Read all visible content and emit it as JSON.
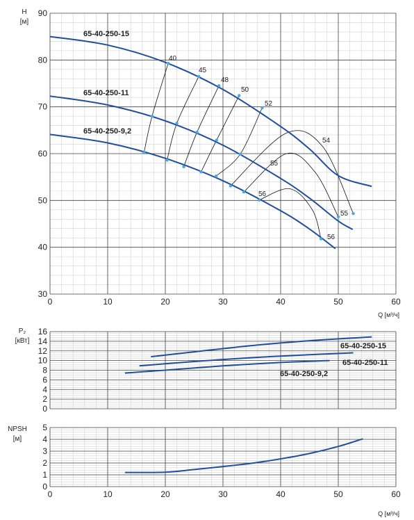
{
  "colors": {
    "curve": "#1f4e9c",
    "marker": "#4aa8e0",
    "iso": "#111111",
    "grid_major": "#444444",
    "grid_minor": "#d2d2d2",
    "text": "#222222"
  },
  "chart_data": [
    {
      "type": "line",
      "id": "head",
      "ylabel": "H\n[м]",
      "xlabel": "Q [м³/ч]",
      "xlim": [
        0,
        60
      ],
      "ylim": [
        30,
        90
      ],
      "xticks": [
        0,
        10,
        20,
        30,
        40,
        50,
        60
      ],
      "yticks": [
        30,
        40,
        50,
        60,
        70,
        80,
        90
      ],
      "grid": true,
      "series": [
        {
          "name": "65-40-250-15",
          "x": [
            0,
            10,
            20,
            30,
            40,
            45,
            50,
            55.8
          ],
          "y": [
            85,
            83.2,
            79.5,
            73.7,
            65.8,
            61,
            55.3,
            53
          ]
        },
        {
          "name": "65-40-250-11",
          "x": [
            0,
            10,
            20,
            30,
            40,
            45,
            50,
            52.5
          ],
          "y": [
            72.3,
            70.4,
            67,
            61.8,
            54.7,
            50.5,
            45.6,
            43.8
          ]
        },
        {
          "name": "65-40-250-9,2",
          "x": [
            0,
            10,
            20,
            30,
            40,
            45,
            49.5
          ],
          "y": [
            64.1,
            62.3,
            59,
            54.2,
            47.8,
            43.9,
            39.7
          ]
        }
      ],
      "efficiency_labels": [
        "40",
        "45",
        "48",
        "50",
        "52",
        "54",
        "55",
        "56",
        "55",
        "56"
      ],
      "efficiency_curves": [
        {
          "label": "40",
          "points": [
            [
              20.5,
              79.3
            ],
            [
              17.7,
              68
            ],
            [
              16.3,
              60.2
            ]
          ]
        },
        {
          "label": "45",
          "points": [
            [
              25.8,
              76.5
            ],
            [
              22,
              66.5
            ],
            [
              20.3,
              58.6
            ]
          ]
        },
        {
          "label": "48",
          "points": [
            [
              29.3,
              74.5
            ],
            [
              25.5,
              64.6
            ],
            [
              23.2,
              57.2
            ]
          ]
        },
        {
          "label": "50",
          "points": [
            [
              32.8,
              72.4
            ],
            [
              28.9,
              62.9
            ],
            [
              26.2,
              56.1
            ]
          ]
        },
        {
          "label": "52",
          "points": [
            [
              36.8,
              69.8
            ],
            [
              33,
              59.9
            ],
            [
              28.8,
              55.2
            ]
          ]
        },
        {
          "label": "54",
          "points": [
            [
              31.3,
              53.1
            ],
            [
              41,
              64.4
            ],
            [
              47.3,
              61.5
            ],
            [
              52.6,
              47.2
            ]
          ]
        },
        {
          "label": "55",
          "points": [
            [
              33.6,
              51.8
            ],
            [
              41,
              60
            ],
            [
              46,
              56
            ],
            [
              50,
              46.5
            ]
          ]
        },
        {
          "label": "56",
          "points": [
            [
              36.3,
              50.1
            ],
            [
              41.6,
              52.5
            ],
            [
              45.5,
              48
            ],
            [
              47,
              41.8
            ]
          ]
        }
      ]
    },
    {
      "type": "line",
      "id": "power",
      "ylabel": "P₂\n[кВт]",
      "xlabel": "",
      "xlim": [
        0,
        60
      ],
      "ylim": [
        0,
        16
      ],
      "xticks": [
        0,
        10,
        20,
        30,
        40,
        50,
        60
      ],
      "yticks": [
        0,
        2,
        4,
        6,
        8,
        10,
        12,
        14,
        16
      ],
      "grid": true,
      "series": [
        {
          "name": "65-40-250-15",
          "x": [
            17.5,
            25,
            35,
            45,
            55.8
          ],
          "y": [
            10.8,
            11.8,
            13.1,
            14.1,
            14.9
          ]
        },
        {
          "name": "65-40-250-11",
          "x": [
            15.5,
            25,
            35,
            45,
            52.6
          ],
          "y": [
            8.9,
            9.8,
            10.6,
            11.2,
            11.6
          ]
        },
        {
          "name": "65-40-250-9,2",
          "x": [
            13,
            20,
            30,
            40,
            48.5
          ],
          "y": [
            7.4,
            8,
            8.9,
            9.6,
            10
          ]
        }
      ]
    },
    {
      "type": "line",
      "id": "npsh",
      "ylabel": "NPSH\n[м]",
      "xlabel": "Q [м³/ч]",
      "xlim": [
        0,
        60
      ],
      "ylim": [
        0,
        5
      ],
      "xticks": [
        0,
        10,
        20,
        30,
        40,
        50,
        60
      ],
      "yticks": [
        0,
        1,
        2,
        3,
        4,
        5
      ],
      "grid": true,
      "series": [
        {
          "name": "",
          "x": [
            13,
            20,
            25,
            30,
            35,
            40,
            45,
            50,
            54.3
          ],
          "y": [
            1.2,
            1.22,
            1.45,
            1.7,
            1.98,
            2.35,
            2.8,
            3.4,
            4.05
          ]
        }
      ]
    }
  ]
}
